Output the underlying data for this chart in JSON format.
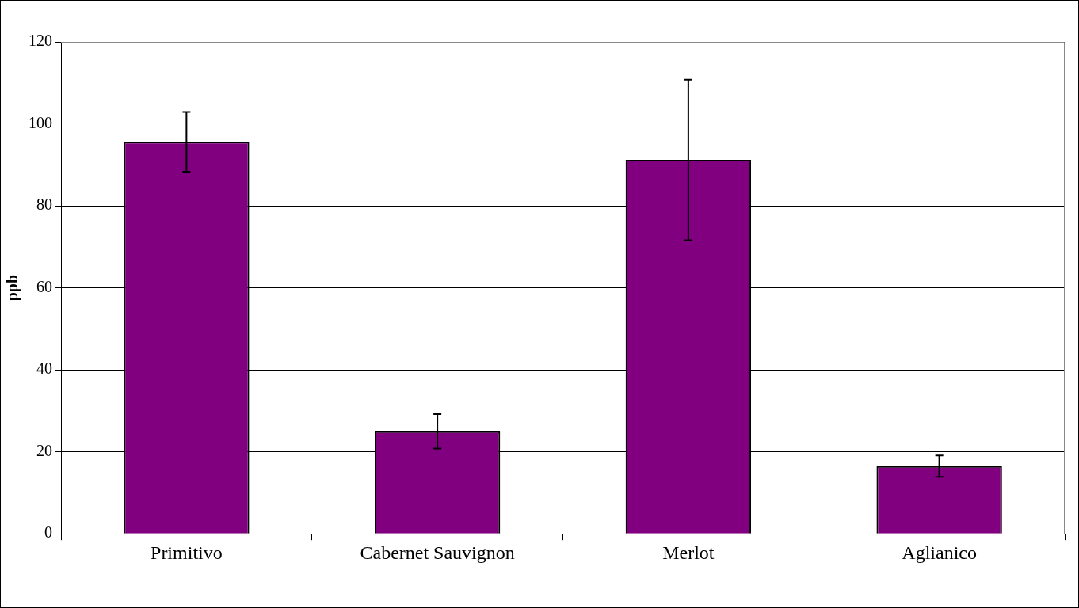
{
  "chart_data": {
    "type": "bar",
    "ylabel": "ppb",
    "categories": [
      "Primitivo",
      "Cabernet Sauvignon",
      "Merlot",
      "Aglianico"
    ],
    "values": [
      95.6,
      25.0,
      91.2,
      16.5
    ],
    "errors": [
      7.3,
      4.2,
      19.6,
      2.6
    ],
    "color": "#800080",
    "ylim": [
      0,
      120
    ],
    "yticks": [
      0,
      20,
      40,
      60,
      80,
      100,
      120
    ],
    "grid": "y",
    "legend": false
  }
}
